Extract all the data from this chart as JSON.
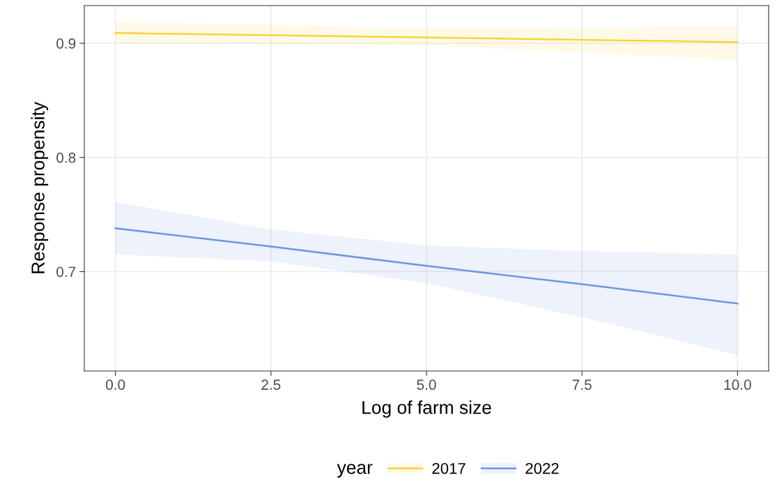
{
  "chart_data": {
    "type": "line",
    "xlabel": "Log of farm size",
    "ylabel": "Response propensity",
    "legend_title": "year",
    "legend": "bottom",
    "grid": true,
    "marker": "none",
    "line_style": "solid",
    "xlim": [
      -0.5,
      10.5
    ],
    "xticks": [
      {
        "value": 0,
        "label": "0.0"
      },
      2.5,
      {
        "value": 5,
        "label": "5.0"
      },
      7.5,
      {
        "value": 10,
        "label": "10.0"
      }
    ],
    "ylim": [
      0.613,
      0.933
    ],
    "yticks": [
      0.7,
      0.8,
      0.9
    ],
    "series": [
      {
        "name": "2017",
        "color": "#f7d23b",
        "x": [
          0,
          2.5,
          5,
          7.5,
          10
        ],
        "values": [
          0.909,
          0.907,
          0.905,
          0.903,
          0.901
        ],
        "lower": [
          0.9,
          0.899,
          0.898,
          0.892,
          0.885
        ],
        "upper": [
          0.919,
          0.916,
          0.913,
          0.914,
          0.915
        ]
      },
      {
        "name": "2022",
        "color": "#6c97e0",
        "x": [
          0,
          2.5,
          5,
          7.5,
          10
        ],
        "values": [
          0.738,
          0.722,
          0.705,
          0.689,
          0.672
        ],
        "lower": [
          0.715,
          0.709,
          0.69,
          0.66,
          0.627
        ],
        "upper": [
          0.761,
          0.737,
          0.723,
          0.718,
          0.715
        ]
      }
    ]
  }
}
